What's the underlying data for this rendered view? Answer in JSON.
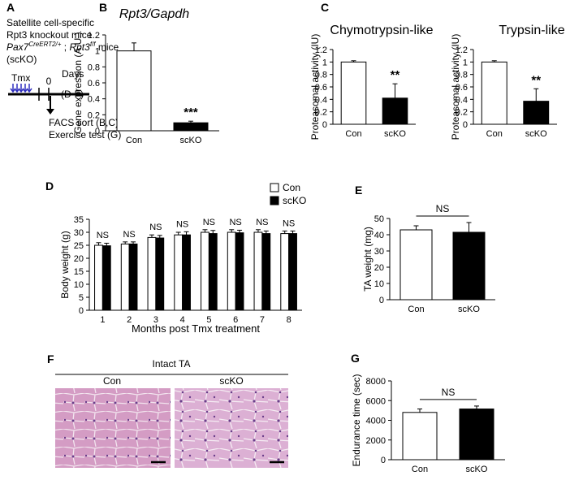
{
  "panel_letters": [
    "A",
    "B",
    "C",
    "D",
    "E",
    "F",
    "G"
  ],
  "diagram": {
    "line1": "Satellite cell-specific",
    "line2": "Rpt3 knockout mice",
    "line3": {
      "a": "Pax7",
      "a_sup": "CreERT2/+",
      "b": " ; ",
      "c": "Rpt3",
      "c_sup": "f/f",
      "d": " mice"
    },
    "line4": "(scKO)",
    "tmx": "Tmx",
    "zero": "0",
    "days": "Days",
    "range": "(D-F)",
    "facs": "FACS sort (B,C)",
    "exercise": "Exercise test (G)"
  },
  "histology": {
    "title": "Intact TA",
    "labels": [
      "Con",
      "scKO"
    ]
  },
  "chart_data": [
    {
      "type": "bar",
      "title": "Rpt3/Gapdh",
      "ylabel": "Gene expression (A.U.)",
      "categories": [
        "Con",
        "scKO"
      ],
      "values": [
        1.0,
        0.1
      ],
      "errors": [
        0.1,
        0.02
      ],
      "colors": [
        "#ffffff",
        "#000000"
      ],
      "annotation": "***",
      "ylim": [
        0,
        1.2
      ],
      "yticks": [
        0,
        0.2,
        0.4,
        0.6,
        0.8,
        1,
        1.2
      ]
    },
    {
      "type": "bar",
      "title": "Chymotrypsin-like",
      "ylabel": "Proteasomal activity (IU)",
      "categories": [
        "Con",
        "scKO"
      ],
      "values": [
        1.0,
        0.42
      ],
      "errors": [
        0.02,
        0.23
      ],
      "colors": [
        "#ffffff",
        "#000000"
      ],
      "annotation": "**",
      "ylim": [
        0,
        1.2
      ],
      "yticks": [
        0,
        0.2,
        0.4,
        0.6,
        0.8,
        1,
        1.2
      ]
    },
    {
      "type": "bar",
      "title": "Trypsin-like",
      "ylabel": "Proteasomal activity (IU)",
      "categories": [
        "Con",
        "scKO"
      ],
      "values": [
        1.0,
        0.37
      ],
      "errors": [
        0.02,
        0.2
      ],
      "colors": [
        "#ffffff",
        "#000000"
      ],
      "annotation": "**",
      "ylim": [
        0,
        1.2
      ],
      "yticks": [
        0,
        0.2,
        0.4,
        0.6,
        0.8,
        1,
        1.2
      ]
    },
    {
      "type": "bar",
      "xlabel": "Months post Tmx treatment",
      "ylabel": "Body weight (g)",
      "categories": [
        "1",
        "2",
        "3",
        "4",
        "5",
        "6",
        "7",
        "8"
      ],
      "series": [
        {
          "name": "Con",
          "color": "#ffffff",
          "values": [
            25,
            25.5,
            28,
            29,
            30,
            30,
            30,
            29.5
          ],
          "errors": [
            1,
            0.8,
            1,
            1,
            1,
            1,
            1,
            1
          ]
        },
        {
          "name": "scKO",
          "color": "#000000",
          "values": [
            24.8,
            25.5,
            27.8,
            29,
            29.5,
            29.8,
            29.5,
            29.5
          ],
          "errors": [
            1,
            0.8,
            1,
            1.2,
            1.2,
            1,
            1,
            1
          ]
        }
      ],
      "annotations": [
        "NS",
        "NS",
        "NS",
        "NS",
        "NS",
        "NS",
        "NS",
        "NS"
      ],
      "ylim": [
        0,
        35
      ],
      "yticks": [
        0,
        5,
        10,
        15,
        20,
        25,
        30,
        35
      ]
    },
    {
      "type": "bar",
      "ylabel": "TA weight (mg)",
      "categories": [
        "Con",
        "scKO"
      ],
      "values": [
        43,
        41.5
      ],
      "errors": [
        2.5,
        6
      ],
      "colors": [
        "#ffffff",
        "#000000"
      ],
      "annotation": "NS",
      "ylim": [
        0,
        50
      ],
      "yticks": [
        0,
        10,
        20,
        30,
        40,
        50
      ]
    },
    {
      "type": "bar",
      "ylabel": "Endurance time (sec)",
      "categories": [
        "Con",
        "scKO"
      ],
      "values": [
        4800,
        5150
      ],
      "errors": [
        350,
        300
      ],
      "colors": [
        "#ffffff",
        "#000000"
      ],
      "annotation": "NS",
      "ylim": [
        0,
        8000
      ],
      "yticks": [
        0,
        2000,
        4000,
        6000,
        8000
      ]
    }
  ]
}
